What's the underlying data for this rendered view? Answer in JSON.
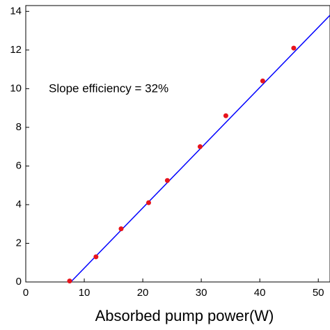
{
  "chart_data": {
    "type": "scatter",
    "annotation": "Slope efficiency = 32%",
    "x_label": "Absorbed pump power(W)",
    "xlim": [
      0,
      52
    ],
    "ylim": [
      0,
      14.3
    ],
    "xticks": [
      0,
      10,
      20,
      30,
      40,
      50
    ],
    "yticks": [
      0,
      2,
      4,
      6,
      8,
      10,
      12,
      14
    ],
    "series": [
      {
        "style": "markers",
        "color": "#e8141c",
        "x": [
          7.5,
          12,
          16.3,
          21,
          24.2,
          29.8,
          34.2,
          40.5,
          45.8
        ],
        "values": [
          0.05,
          1.3,
          2.75,
          4.1,
          5.25,
          7.0,
          8.6,
          10.4,
          12.1
        ]
      },
      {
        "style": "line",
        "color": "#0000ff",
        "x": [
          7.7,
          52
        ],
        "values": [
          0,
          13.8
        ]
      }
    ]
  }
}
